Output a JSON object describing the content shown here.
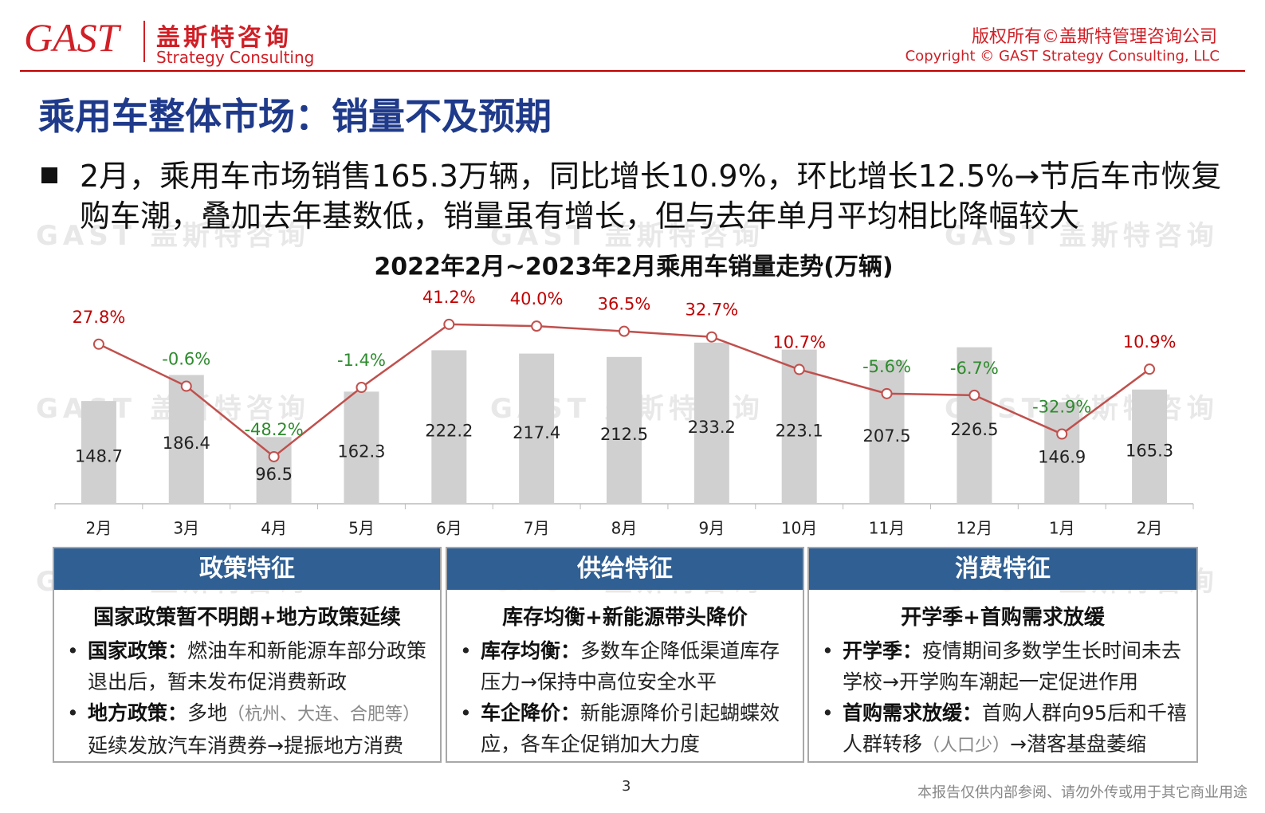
{
  "header": {
    "logo": "GAST",
    "brand_cn": "盖斯特咨询",
    "brand_en": "Strategy Consulting",
    "copyright_cn": "版权所有©盖斯特管理咨询公司",
    "copyright_en": "Copyright © GAST Strategy Consulting, LLC"
  },
  "watermark": "GAST 盖斯特咨询",
  "title": "乘用车整体市场：销量不及预期",
  "bullet": "2月，乘用车市场销售165.3万辆，同比增长10.9%，环比增长12.5%→节后车市恢复购车潮，叠加去年基数低，销量虽有增长，但与去年单月平均相比降幅较大",
  "chart_data": {
    "type": "bar_line",
    "title": "2022年2月~2023年2月乘用车销量走势(万辆)",
    "categories": [
      "2月",
      "3月",
      "4月",
      "5月",
      "6月",
      "7月",
      "8月",
      "9月",
      "10月",
      "11月",
      "12月",
      "1月",
      "2月"
    ],
    "ylim": [
      0,
      300
    ],
    "y2lim": [
      -80,
      60
    ],
    "series": [
      {
        "type": "bar",
        "color": "#d0d0d0",
        "values": [
          148.7,
          186.4,
          96.5,
          162.3,
          222.2,
          217.4,
          212.5,
          233.2,
          223.1,
          207.5,
          226.5,
          146.9,
          165.3
        ]
      },
      {
        "type": "line",
        "axis": "y2",
        "color": "#c0504d",
        "positive_color": "#c00000",
        "negative_color": "#2e8b2e",
        "values": [
          27.8,
          -0.6,
          -48.2,
          -1.4,
          41.2,
          40.0,
          36.5,
          32.7,
          10.7,
          -5.6,
          -6.7,
          -32.9,
          10.9
        ],
        "value_labels": [
          "27.8%",
          "-0.6%",
          "-48.2%",
          "-1.4%",
          "41.2%",
          "40.0%",
          "36.5%",
          "32.7%",
          "10.7%",
          "-5.6%",
          "-6.7%",
          "-32.9%",
          "10.9%"
        ]
      }
    ]
  },
  "panels": [
    {
      "title": "政策特征",
      "subtitle": "国家政策暂不明朗+地方政策延续",
      "items": [
        {
          "label": "国家政策：",
          "text": "燃油车和新能源车部分政策退出后，暂未发布促消费新政"
        },
        {
          "label": "地方政策：",
          "text": "多地",
          "note": "（杭州、大连、合肥等）",
          "rest": "延续发放汽车消费券→提振地方消费"
        }
      ]
    },
    {
      "title": "供给特征",
      "subtitle": "库存均衡+新能源带头降价",
      "items": [
        {
          "label": "库存均衡：",
          "text": "多数车企降低渠道库存压力→保持中高位安全水平"
        },
        {
          "label": "车企降价：",
          "text": "新能源降价引起蝴蝶效应，各车企促销加大力度"
        }
      ]
    },
    {
      "title": "消费特征",
      "subtitle": "开学季+首购需求放缓",
      "items": [
        {
          "label": "开学季：",
          "text": "疫情期间多数学生长时间未去学校→开学购车潮起一定促进作用"
        },
        {
          "label": "首购需求放缓：",
          "text": "首购人群向95后和千禧人群转移",
          "note": "（人口少）",
          "rest": "→潜客基盘萎缩"
        }
      ]
    }
  ],
  "footer": {
    "page": "3",
    "disclaimer": "本报告仅供内部参阅、请勿外传或用于其它商业用途"
  }
}
